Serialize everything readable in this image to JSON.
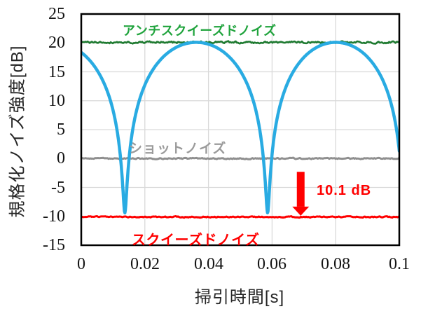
{
  "figure": {
    "background": "#ffffff",
    "border_color": "#000000"
  },
  "chart_data": {
    "type": "line",
    "title": "",
    "xlabel": "掃引時間[s]",
    "ylabel": "規格化ノイズ強度[dB]",
    "xlim": [
      0,
      0.1
    ],
    "ylim": [
      -15,
      25
    ],
    "xticks": [
      "0",
      "0.02",
      "0.04",
      "0.06",
      "0.08",
      "0.1"
    ],
    "xtick_values": [
      0,
      0.02,
      0.04,
      0.06,
      0.08,
      0.1
    ],
    "yticks": [
      "25",
      "20",
      "15",
      "10",
      "5",
      "0",
      "-5",
      "-10",
      "-15"
    ],
    "ytick_values": [
      25,
      20,
      15,
      10,
      5,
      0,
      -5,
      -10,
      -15
    ],
    "grid": true,
    "grid_color": "#d9d9d9",
    "legend_position": "inline-labels",
    "series": [
      {
        "name": "アンチスクイーズドノイズ",
        "type": "noisy-constant",
        "level_db": 20.1,
        "noise_amp_db": 0.28,
        "color": "#1e7a30",
        "label_color": "#1fa33c",
        "line_width": 2.6
      },
      {
        "name": "ショットノイズ",
        "type": "noisy-constant",
        "level_db": 0,
        "noise_amp_db": 0.16,
        "color": "#8f8f8f",
        "label_color": "#9b9b9b",
        "line_width": 3
      },
      {
        "name": "スクイーズドノイズ",
        "type": "noisy-constant",
        "level_db": -10.1,
        "noise_amp_db": 0.16,
        "color": "#ff0000",
        "label_color": "#ff0000",
        "line_width": 3
      },
      {
        "name": "",
        "id": "swept-quadrature-noise",
        "type": "squeezing-sweep",
        "max_db": 20.1,
        "min_db": -9.4,
        "dip_times_s": [
          0.0137,
          0.0586,
          0.1015
        ],
        "start_value_db": 17.2,
        "end_value_db": 2.4,
        "color": "#29abe2",
        "line_width": 4.5
      }
    ],
    "annotation": {
      "text": "10.1 dB",
      "color": "#ff0000",
      "arrow": {
        "x_s": 0.069,
        "from_db": -2.3,
        "to_db": -9.9
      }
    }
  }
}
